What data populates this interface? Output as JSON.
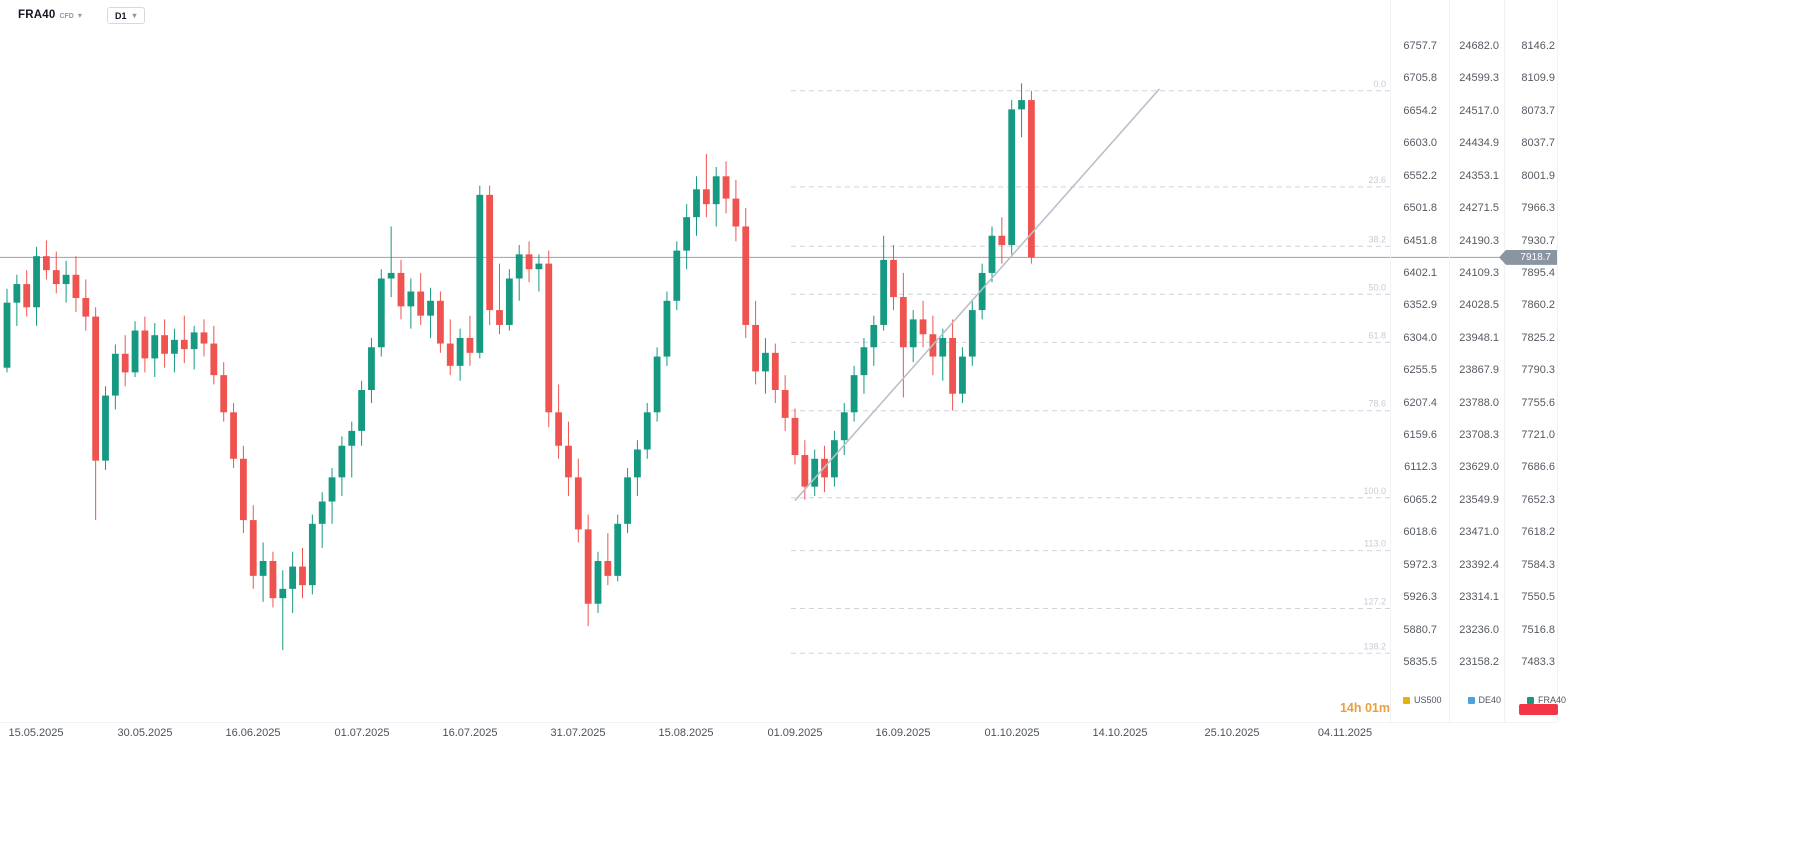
{
  "header": {
    "symbol": "FRA40",
    "symbol_type": "CFD",
    "timeframe": "D1"
  },
  "current_price": {
    "value": "7918.7"
  },
  "footer": {
    "countdown": "14h 01m"
  },
  "colors": {
    "bull": "#159980",
    "bear": "#ef5350",
    "price_line": "#98a0a9",
    "price_tag_bg": "#8b95a1",
    "fib": "#cfd4db",
    "fib_label": "#c6ccd5",
    "trendline": "#b9c0ca",
    "countdown": "#e8a13c",
    "badge": "#f23645",
    "us500": "#e7b10a",
    "de40": "#4aa3df",
    "fra40": "#159980"
  },
  "legend": {
    "items": [
      {
        "name": "US500",
        "color": "#e7b10a"
      },
      {
        "name": "DE40",
        "color": "#4aa3df"
      },
      {
        "name": "FRA40",
        "color": "#159980"
      }
    ]
  },
  "time_axis": {
    "labels": [
      "15.05.2025",
      "30.05.2025",
      "16.06.2025",
      "01.07.2025",
      "16.07.2025",
      "31.07.2025",
      "15.08.2025",
      "01.09.2025",
      "16.09.2025",
      "01.10.2025",
      "14.10.2025",
      "25.10.2025",
      "04.11.2025"
    ]
  },
  "price_scale": {
    "us500": [
      "6757.7",
      "6705.8",
      "6654.2",
      "6603.0",
      "6552.2",
      "6501.8",
      "6451.8",
      "6402.1",
      "6352.9",
      "6304.0",
      "6255.5",
      "6207.4",
      "6159.6",
      "6112.3",
      "6065.2",
      "6018.6",
      "5972.3",
      "5926.3",
      "5880.7",
      "5835.5"
    ],
    "de40": [
      "24682.0",
      "24599.3",
      "24517.0",
      "24434.9",
      "24353.1",
      "24271.5",
      "24190.3",
      "24109.3",
      "24028.5",
      "23948.1",
      "23867.9",
      "23788.0",
      "23708.3",
      "23629.0",
      "23549.9",
      "23471.0",
      "23392.4",
      "23314.1",
      "23236.0",
      "23158.2"
    ],
    "fra40": [
      "8146.2",
      "8109.9",
      "8073.7",
      "8037.7",
      "8001.9",
      "7966.3",
      "7930.7",
      "7895.4",
      "7860.2",
      "7825.2",
      "7790.3",
      "7755.6",
      "7721.0",
      "7686.6",
      "7652.3",
      "7618.2",
      "7584.3",
      "7550.5",
      "7516.8",
      "7483.3"
    ]
  },
  "fibonacci": {
    "levels": [
      {
        "label": "0.0",
        "price": 8098.0
      },
      {
        "label": "23.6",
        "price": 7994.6
      },
      {
        "label": "38.2",
        "price": 7930.7
      },
      {
        "label": "50.0",
        "price": 7879.0
      },
      {
        "label": "61.8",
        "price": 7827.3
      },
      {
        "label": "78.6",
        "price": 7753.7
      },
      {
        "label": "100.0",
        "price": 7660.0
      },
      {
        "label": "113.0",
        "price": 7603.1
      },
      {
        "label": "127.2",
        "price": 7540.9
      },
      {
        "label": "138.2",
        "price": 7492.7
      }
    ]
  },
  "trendline": {
    "start": {
      "candle_index": 80,
      "price": 7657
    },
    "end": {
      "candle_index": 117,
      "price": 8100
    }
  },
  "chart_data": {
    "type": "candlestick",
    "symbol": "FRA40",
    "timeframe": "D1",
    "ylabel": "FRA40 price (right scale, third column)",
    "y_axis_range_fra40": [
      7483.3,
      8146.2
    ],
    "grid": "off",
    "columns": [
      "date",
      "open",
      "high",
      "low",
      "close"
    ],
    "candles": [
      [
        "12.05",
        7800,
        7885,
        7795,
        7870
      ],
      [
        "13.05",
        7870,
        7900,
        7845,
        7890
      ],
      [
        "14.05",
        7890,
        7905,
        7855,
        7865
      ],
      [
        "15.05",
        7865,
        7930,
        7845,
        7920
      ],
      [
        "16.05",
        7920,
        7937,
        7895,
        7905
      ],
      [
        "19.05",
        7905,
        7925,
        7880,
        7890
      ],
      [
        "20.05",
        7890,
        7915,
        7870,
        7900
      ],
      [
        "21.05",
        7900,
        7920,
        7860,
        7875
      ],
      [
        "22.05",
        7875,
        7895,
        7840,
        7855
      ],
      [
        "23.05",
        7855,
        7865,
        7636,
        7700
      ],
      [
        "26.05",
        7700,
        7780,
        7690,
        7770
      ],
      [
        "27.05",
        7770,
        7825,
        7755,
        7815
      ],
      [
        "28.05",
        7815,
        7835,
        7780,
        7795
      ],
      [
        "29.05",
        7795,
        7850,
        7790,
        7840
      ],
      [
        "30.05",
        7840,
        7855,
        7795,
        7810
      ],
      [
        "02.06",
        7810,
        7848,
        7790,
        7835
      ],
      [
        "03.06",
        7835,
        7852,
        7800,
        7815
      ],
      [
        "04.06",
        7815,
        7842,
        7795,
        7830
      ],
      [
        "05.06",
        7830,
        7856,
        7805,
        7820
      ],
      [
        "06.06",
        7820,
        7845,
        7798,
        7838
      ],
      [
        "09.06",
        7838,
        7852,
        7812,
        7826
      ],
      [
        "10.06",
        7826,
        7845,
        7782,
        7792
      ],
      [
        "11.06",
        7792,
        7806,
        7742,
        7752
      ],
      [
        "12.06",
        7752,
        7762,
        7692,
        7702
      ],
      [
        "13.06",
        7702,
        7716,
        7622,
        7636
      ],
      [
        "16.06",
        7636,
        7652,
        7562,
        7576
      ],
      [
        "17.06",
        7576,
        7612,
        7548,
        7592
      ],
      [
        "18.06",
        7592,
        7602,
        7542,
        7552
      ],
      [
        "19.06",
        7552,
        7582,
        7496,
        7562
      ],
      [
        "20.06",
        7562,
        7602,
        7536,
        7586
      ],
      [
        "23.06",
        7586,
        7606,
        7552,
        7566
      ],
      [
        "24.06",
        7566,
        7642,
        7556,
        7632
      ],
      [
        "25.06",
        7632,
        7666,
        7606,
        7656
      ],
      [
        "26.06",
        7656,
        7692,
        7632,
        7682
      ],
      [
        "27.06",
        7682,
        7726,
        7662,
        7716
      ],
      [
        "30.06",
        7716,
        7742,
        7682,
        7732
      ],
      [
        "01.07",
        7732,
        7786,
        7716,
        7776
      ],
      [
        "02.07",
        7776,
        7832,
        7762,
        7822
      ],
      [
        "03.07",
        7822,
        7906,
        7812,
        7896
      ],
      [
        "04.07",
        7896,
        7952,
        7876,
        7902
      ],
      [
        "07.07",
        7902,
        7916,
        7852,
        7866
      ],
      [
        "08.07",
        7866,
        7896,
        7842,
        7882
      ],
      [
        "09.07",
        7882,
        7902,
        7846,
        7856
      ],
      [
        "10.07",
        7856,
        7886,
        7832,
        7872
      ],
      [
        "11.07",
        7872,
        7882,
        7816,
        7826
      ],
      [
        "14.07",
        7826,
        7852,
        7792,
        7802
      ],
      [
        "15.07",
        7802,
        7842,
        7786,
        7832
      ],
      [
        "16.07",
        7832,
        7856,
        7802,
        7816
      ],
      [
        "17.07",
        7816,
        7996,
        7810,
        7986
      ],
      [
        "18.07",
        7986,
        7996,
        7846,
        7862
      ],
      [
        "21.07",
        7862,
        7912,
        7836,
        7846
      ],
      [
        "22.07",
        7846,
        7906,
        7840,
        7896
      ],
      [
        "23.07",
        7896,
        7932,
        7872,
        7922
      ],
      [
        "24.07",
        7922,
        7936,
        7892,
        7906
      ],
      [
        "25.07",
        7906,
        7922,
        7882,
        7912
      ],
      [
        "28.07",
        7912,
        7926,
        7736,
        7752
      ],
      [
        "29.07",
        7752,
        7782,
        7702,
        7716
      ],
      [
        "30.07",
        7716,
        7742,
        7662,
        7682
      ],
      [
        "31.07",
        7682,
        7702,
        7612,
        7626
      ],
      [
        "01.08",
        7626,
        7642,
        7522,
        7546
      ],
      [
        "04.08",
        7546,
        7602,
        7536,
        7592
      ],
      [
        "05.08",
        7592,
        7622,
        7566,
        7576
      ],
      [
        "06.08",
        7576,
        7642,
        7570,
        7632
      ],
      [
        "07.08",
        7632,
        7692,
        7622,
        7682
      ],
      [
        "08.08",
        7682,
        7722,
        7662,
        7712
      ],
      [
        "11.08",
        7712,
        7762,
        7702,
        7752
      ],
      [
        "12.08",
        7752,
        7822,
        7742,
        7812
      ],
      [
        "13.08",
        7812,
        7882,
        7802,
        7872
      ],
      [
        "14.08",
        7872,
        7936,
        7862,
        7926
      ],
      [
        "15.08",
        7926,
        7976,
        7906,
        7962
      ],
      [
        "18.08",
        7962,
        8006,
        7942,
        7992
      ],
      [
        "19.08",
        7992,
        8030,
        7962,
        7976
      ],
      [
        "20.08",
        7976,
        8016,
        7952,
        8006
      ],
      [
        "21.08",
        8006,
        8022,
        7966,
        7982
      ],
      [
        "22.08",
        7982,
        8002,
        7936,
        7952
      ],
      [
        "25.08",
        7952,
        7972,
        7832,
        7846
      ],
      [
        "26.08",
        7846,
        7872,
        7782,
        7796
      ],
      [
        "27.08",
        7796,
        7832,
        7772,
        7816
      ],
      [
        "28.08",
        7816,
        7826,
        7762,
        7776
      ],
      [
        "29.08",
        7776,
        7792,
        7732,
        7746
      ],
      [
        "01.09",
        7746,
        7756,
        7696,
        7706
      ],
      [
        "02.09",
        7706,
        7722,
        7658,
        7672
      ],
      [
        "03.09",
        7672,
        7712,
        7662,
        7702
      ],
      [
        "04.09",
        7702,
        7716,
        7666,
        7682
      ],
      [
        "05.09",
        7682,
        7732,
        7672,
        7722
      ],
      [
        "08.09",
        7722,
        7762,
        7706,
        7752
      ],
      [
        "09.09",
        7752,
        7802,
        7742,
        7792
      ],
      [
        "10.09",
        7792,
        7832,
        7772,
        7822
      ],
      [
        "11.09",
        7822,
        7856,
        7802,
        7846
      ],
      [
        "12.09",
        7846,
        7942,
        7840,
        7916
      ],
      [
        "15.09",
        7916,
        7932,
        7862,
        7876
      ],
      [
        "16.09",
        7876,
        7902,
        7768,
        7822
      ],
      [
        "17.09",
        7822,
        7862,
        7806,
        7852
      ],
      [
        "18.09",
        7852,
        7872,
        7822,
        7836
      ],
      [
        "19.09",
        7836,
        7856,
        7792,
        7812
      ],
      [
        "22.09",
        7812,
        7842,
        7786,
        7832
      ],
      [
        "23.09",
        7832,
        7852,
        7754,
        7772
      ],
      [
        "24.09",
        7772,
        7822,
        7762,
        7812
      ],
      [
        "25.09",
        7812,
        7872,
        7802,
        7862
      ],
      [
        "26.09",
        7862,
        7912,
        7852,
        7902
      ],
      [
        "29.09",
        7902,
        7952,
        7892,
        7942
      ],
      [
        "30.09",
        7942,
        7962,
        7912,
        7932
      ],
      [
        "01.10",
        7932,
        8088,
        7922,
        8078
      ],
      [
        "02.10",
        8078,
        8106,
        8048,
        8088
      ],
      [
        "03.10",
        8088,
        8098,
        7912,
        7918.7
      ]
    ]
  }
}
